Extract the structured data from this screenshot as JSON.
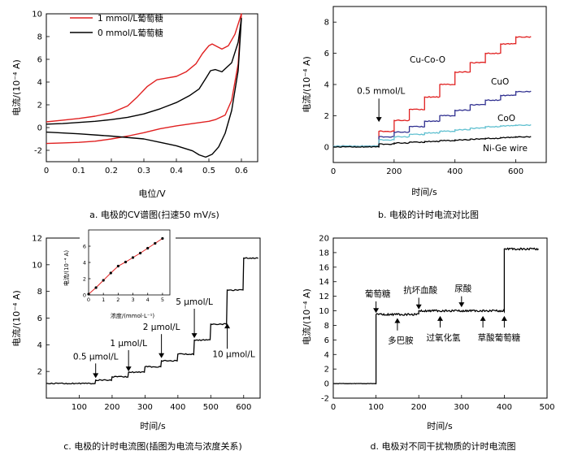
{
  "chart_data": [
    {
      "type": "line",
      "caption": "a.  电极的CV谱图(扫速50 mV/s)",
      "xlabel": "电位/V",
      "ylabel": "电流/(10⁻⁴ A)",
      "xlim": [
        0,
        0.65
      ],
      "ylim": [
        -3,
        10
      ],
      "xticks": [
        0,
        0.1,
        0.2,
        0.3,
        0.4,
        0.5,
        0.6
      ],
      "xtick_labels": [
        "0",
        "0.1",
        "0.2",
        "0.3",
        "0.4",
        "0.5",
        "0.6"
      ],
      "yticks": [
        -2,
        0,
        2,
        4,
        6,
        8,
        10
      ],
      "ytick_labels": [
        "-2",
        "0",
        "2",
        "4",
        "6",
        "8",
        "10"
      ],
      "legend_position": "top-left",
      "series": [
        {
          "name": "1 mmol/L葡萄糖",
          "color": "#e02020",
          "forward": [
            [
              0,
              0.5
            ],
            [
              0.05,
              0.65
            ],
            [
              0.1,
              0.8
            ],
            [
              0.15,
              1.0
            ],
            [
              0.2,
              1.3
            ],
            [
              0.25,
              1.9
            ],
            [
              0.28,
              2.7
            ],
            [
              0.31,
              3.6
            ],
            [
              0.34,
              4.2
            ],
            [
              0.37,
              4.35
            ],
            [
              0.4,
              4.5
            ],
            [
              0.43,
              4.9
            ],
            [
              0.46,
              5.6
            ],
            [
              0.48,
              6.5
            ],
            [
              0.5,
              7.2
            ],
            [
              0.51,
              7.35
            ],
            [
              0.52,
              7.2
            ],
            [
              0.54,
              6.9
            ],
            [
              0.56,
              7.2
            ],
            [
              0.58,
              8.2
            ],
            [
              0.6,
              10.0
            ]
          ],
          "reverse": [
            [
              0.6,
              10.0
            ],
            [
              0.59,
              5.6
            ],
            [
              0.57,
              2.4
            ],
            [
              0.55,
              1.1
            ],
            [
              0.52,
              0.7
            ],
            [
              0.5,
              0.55
            ],
            [
              0.45,
              0.35
            ],
            [
              0.4,
              0.15
            ],
            [
              0.35,
              -0.1
            ],
            [
              0.3,
              -0.45
            ],
            [
              0.25,
              -0.75
            ],
            [
              0.2,
              -1.0
            ],
            [
              0.15,
              -1.2
            ],
            [
              0.1,
              -1.3
            ],
            [
              0.05,
              -1.35
            ],
            [
              0,
              -1.4
            ]
          ]
        },
        {
          "name": "0 mmol/L葡萄糖",
          "color": "#000000",
          "forward": [
            [
              0,
              0.3
            ],
            [
              0.05,
              0.35
            ],
            [
              0.1,
              0.45
            ],
            [
              0.15,
              0.55
            ],
            [
              0.2,
              0.7
            ],
            [
              0.25,
              0.9
            ],
            [
              0.3,
              1.2
            ],
            [
              0.35,
              1.65
            ],
            [
              0.4,
              2.2
            ],
            [
              0.44,
              2.8
            ],
            [
              0.47,
              3.4
            ],
            [
              0.49,
              4.3
            ],
            [
              0.505,
              5.0
            ],
            [
              0.52,
              5.1
            ],
            [
              0.54,
              4.9
            ],
            [
              0.57,
              5.7
            ],
            [
              0.59,
              7.5
            ],
            [
              0.6,
              9.6
            ]
          ],
          "reverse": [
            [
              0.6,
              9.6
            ],
            [
              0.59,
              5.0
            ],
            [
              0.57,
              1.5
            ],
            [
              0.55,
              -0.5
            ],
            [
              0.53,
              -1.7
            ],
            [
              0.51,
              -2.35
            ],
            [
              0.49,
              -2.6
            ],
            [
              0.47,
              -2.4
            ],
            [
              0.45,
              -2.05
            ],
            [
              0.4,
              -1.6
            ],
            [
              0.35,
              -1.3
            ],
            [
              0.3,
              -1.0
            ],
            [
              0.2,
              -0.75
            ],
            [
              0.1,
              -0.55
            ],
            [
              0,
              -0.4
            ]
          ]
        }
      ]
    },
    {
      "type": "line",
      "caption": "b.  电极的计时电流对比图",
      "xlabel": "时间/s",
      "ylabel": "电流/(10⁻⁴ A)",
      "xlim": [
        0,
        700
      ],
      "ylim": [
        -1,
        9
      ],
      "xticks": [
        0,
        200,
        400,
        600
      ],
      "xtick_labels": [
        "0",
        "200",
        "400",
        "600"
      ],
      "yticks": [
        0,
        2,
        4,
        6,
        8
      ],
      "ytick_labels": [
        "0",
        "2",
        "4",
        "6",
        "8"
      ],
      "annotations": [
        {
          "text": "0.5 mmol/L",
          "arrow_x": 150,
          "arrow_y_from": 3.2,
          "arrow_y_to": 1.6
        }
      ],
      "steps_start": 150,
      "steps_interval": 50,
      "steps_end": 650,
      "series": [
        {
          "name": "Cu-Co-O",
          "color": "#e02020",
          "baseline": 0.05,
          "levels": [
            1.0,
            1.7,
            2.4,
            3.2,
            4.0,
            4.8,
            5.4,
            6.0,
            6.6,
            7.05
          ]
        },
        {
          "name": "CuO",
          "color": "#303090",
          "baseline": 0.05,
          "levels": [
            0.65,
            0.95,
            1.3,
            1.65,
            2.0,
            2.35,
            2.7,
            3.0,
            3.3,
            3.55
          ]
        },
        {
          "name": "CoO",
          "color": "#60c0d0",
          "baseline": 0.05,
          "levels": [
            0.45,
            0.65,
            0.8,
            0.9,
            1.0,
            1.1,
            1.2,
            1.3,
            1.35,
            1.4
          ]
        },
        {
          "name": "Ni-Ge wire",
          "color": "#000000",
          "baseline": 0.0,
          "levels": [
            0.18,
            0.25,
            0.3,
            0.35,
            0.4,
            0.45,
            0.5,
            0.55,
            0.6,
            0.65
          ]
        }
      ]
    },
    {
      "type": "line",
      "caption": "c.  电极的计时电流图(插图为电流与浓度关系)",
      "xlabel": "时间/s",
      "ylabel": "电流/(10⁻⁴ A)",
      "xlim": [
        0,
        650
      ],
      "ylim": [
        0,
        12
      ],
      "xticks": [
        100,
        200,
        300,
        400,
        500,
        600
      ],
      "xtick_labels": [
        "100",
        "200",
        "300",
        "400",
        "500",
        "600"
      ],
      "yticks": [
        2,
        4,
        6,
        8,
        10,
        12
      ],
      "ytick_labels": [
        "2",
        "4",
        "6",
        "8",
        "10",
        "12"
      ],
      "annotations": [
        {
          "text": "0.5 μmol/L",
          "arrow_x": 150,
          "arrow_y_from": 2.6,
          "arrow_y_to": 1.5,
          "direction": "down"
        },
        {
          "text": "1 μmol/L",
          "arrow_x": 250,
          "arrow_y_from": 3.6,
          "arrow_y_to": 2.0,
          "direction": "down"
        },
        {
          "text": "2 μmol/L",
          "arrow_x": 350,
          "arrow_y_from": 4.8,
          "arrow_y_to": 3.0,
          "direction": "down"
        },
        {
          "text": "5 μmol/L",
          "arrow_x": 450,
          "arrow_y_from": 6.7,
          "arrow_y_to": 4.5,
          "direction": "down"
        },
        {
          "text": "10 μmol/L",
          "arrow_x": 550,
          "arrow_y_from": 3.7,
          "arrow_y_to": 5.6,
          "direction": "up"
        }
      ],
      "step_times": [
        150,
        200,
        250,
        300,
        350,
        400,
        450,
        500,
        550,
        600
      ],
      "levels": [
        1.1,
        1.35,
        1.6,
        1.95,
        2.35,
        2.8,
        3.3,
        4.35,
        5.55,
        8.1,
        10.5
      ],
      "inset": {
        "xlabel": "浓度/(mmol·L⁻¹)",
        "ylabel": "电流/(10⁻⁴ A)",
        "xlim": [
          0,
          5.5
        ],
        "ylim": [
          0,
          8
        ],
        "xticks": [
          0,
          1,
          2,
          3,
          4,
          5
        ],
        "xtick_labels": [
          "0",
          "1",
          "2",
          "3",
          "4",
          "5"
        ],
        "yticks": [
          0,
          2,
          4,
          6
        ],
        "ytick_labels": [
          "0",
          "2",
          "4",
          "6"
        ],
        "x": [
          0,
          0.5,
          1.0,
          1.5,
          2.0,
          2.5,
          3.0,
          3.5,
          4.0,
          4.5,
          5.0
        ],
        "y": [
          0.1,
          0.9,
          1.8,
          2.7,
          3.55,
          4.05,
          4.6,
          5.15,
          5.75,
          6.35,
          6.95
        ],
        "color": "#e02020"
      }
    },
    {
      "type": "line",
      "caption": "d.  电极对不同干扰物质的计时电流图",
      "xlabel": "时间/s",
      "ylabel": "电流/(10⁻⁴ A)",
      "xlim": [
        0,
        500
      ],
      "ylim": [
        -2,
        20
      ],
      "xticks": [
        0,
        100,
        200,
        300,
        400,
        500
      ],
      "xtick_labels": [
        "0",
        "100",
        "200",
        "300",
        "400",
        "500"
      ],
      "yticks": [
        -2,
        0,
        2,
        4,
        6,
        8,
        10,
        12,
        14,
        16,
        18,
        20
      ],
      "ytick_labels": [
        "-2",
        "0",
        "2",
        "4",
        "6",
        "8",
        "10",
        "12",
        "14",
        "16",
        "18",
        "20"
      ],
      "annotations": [
        {
          "text": "葡萄糖",
          "arrow_x": 100,
          "label_above": true,
          "arrow_y_from": 11.3,
          "arrow_y_to": 9.7
        },
        {
          "text": "多巴胺",
          "arrow_x": 150,
          "label_above": false,
          "arrow_y_from": 7.3,
          "arrow_y_to": 9.0
        },
        {
          "text": "抗坏血酸",
          "arrow_x": 200,
          "label_above": true,
          "arrow_y_from": 11.8,
          "arrow_y_to": 10.2
        },
        {
          "text": "过氧化氢",
          "arrow_x": 250,
          "label_above": false,
          "arrow_y_from": 7.7,
          "arrow_y_to": 9.3
        },
        {
          "text": "尿酸",
          "arrow_x": 300,
          "label_above": true,
          "arrow_y_from": 12.0,
          "arrow_y_to": 10.5
        },
        {
          "text": "草酸",
          "arrow_x": 350,
          "label_above": false,
          "arrow_y_from": 7.7,
          "arrow_y_to": 9.3
        },
        {
          "text": "葡萄糖",
          "arrow_x": 400,
          "label_above": false,
          "arrow_y_from": 7.7,
          "arrow_y_to": 9.3
        }
      ],
      "segments": [
        {
          "t0": 0,
          "t1": 100,
          "level": 0.0
        },
        {
          "t0": 100,
          "t1": 200,
          "level": 9.5
        },
        {
          "t0": 200,
          "t1": 400,
          "level": 10.0
        },
        {
          "t0": 400,
          "t1": 480,
          "level": 18.5
        }
      ],
      "color": "#000000"
    }
  ]
}
